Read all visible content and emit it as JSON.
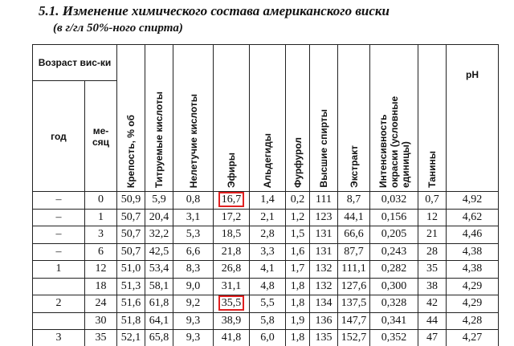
{
  "title": "5.1. Изменение химического состава американского виски",
  "subtitle": "(в г/гл 50%-ного спирта)",
  "table": {
    "age_header": "Возраст вис-ки",
    "columns": [
      "год",
      "ме-сяц",
      "Крепость, % об",
      "Титруемые кислоты",
      "Нелетучие кислоты",
      "Эфиры",
      "Альдегиды",
      "Фурфурол",
      "Высшие спирты",
      "Экстракт",
      "Интенсивность окраски (условные единицы)",
      "Танины",
      "pH"
    ],
    "rows": [
      [
        "–",
        "0",
        "50,9",
        "5,9",
        "0,8",
        "16,7",
        "1,4",
        "0,2",
        "111",
        "8,7",
        "0,032",
        "0,7",
        "4,92"
      ],
      [
        "–",
        "1",
        "50,7",
        "20,4",
        "3,1",
        "17,2",
        "2,1",
        "1,2",
        "123",
        "44,1",
        "0,156",
        "12",
        "4,62"
      ],
      [
        "–",
        "3",
        "50,7",
        "32,2",
        "5,3",
        "18,5",
        "2,8",
        "1,5",
        "131",
        "66,6",
        "0,205",
        "21",
        "4,46"
      ],
      [
        "–",
        "6",
        "50,7",
        "42,5",
        "6,6",
        "21,8",
        "3,3",
        "1,6",
        "131",
        "87,7",
        "0,243",
        "28",
        "4,38"
      ],
      [
        "1",
        "12",
        "51,0",
        "53,4",
        "8,3",
        "26,8",
        "4,1",
        "1,7",
        "132",
        "111,1",
        "0,282",
        "35",
        "4,38"
      ],
      [
        null,
        "18",
        "51,3",
        "58,1",
        "9,0",
        "31,1",
        "4,8",
        "1,8",
        "132",
        "127,6",
        "0,300",
        "38",
        "4,29"
      ],
      [
        "2",
        "24",
        "51,6",
        "61,8",
        "9,2",
        "35,5",
        "5,5",
        "1,8",
        "134",
        "137,5",
        "0,328",
        "42",
        "4,29"
      ],
      [
        null,
        "30",
        "51,8",
        "64,1",
        "9,3",
        "38,9",
        "5,8",
        "1,9",
        "136",
        "147,7",
        "0,341",
        "44",
        "4,28"
      ],
      [
        "3",
        "35",
        "52,1",
        "65,8",
        "9,3",
        "41,8",
        "6,0",
        "1,8",
        "135",
        "152,7",
        "0,352",
        "47",
        "4,27"
      ]
    ]
  }
}
